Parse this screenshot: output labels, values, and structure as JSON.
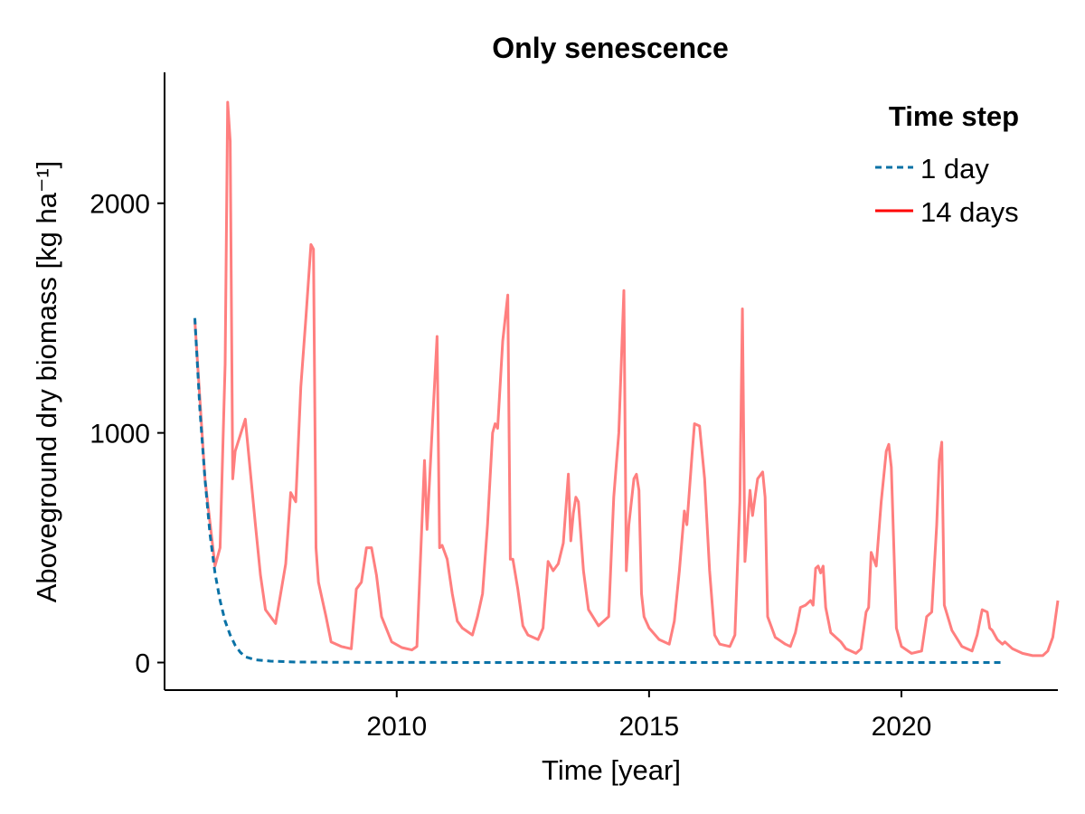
{
  "chart_data": {
    "type": "line",
    "title": "Only senescence",
    "xlabel": "Time [year]",
    "ylabel": "Aboveground dry biomass [kg ha⁻¹]",
    "xlim": [
      2005.4,
      2023.1
    ],
    "ylim": [
      -120,
      2570
    ],
    "xticks": [
      2010,
      2015,
      2020
    ],
    "yticks": [
      0,
      1000,
      2000
    ],
    "grid": false,
    "legend": {
      "title": "Time step",
      "position": "top-right"
    },
    "series": [
      {
        "name": "1 day",
        "color": "#0a72a6",
        "style": "dashed",
        "points": [
          [
            2006.0,
            1500
          ],
          [
            2006.1,
            1100
          ],
          [
            2006.2,
            800
          ],
          [
            2006.3,
            560
          ],
          [
            2006.4,
            390
          ],
          [
            2006.5,
            270
          ],
          [
            2006.6,
            180
          ],
          [
            2006.7,
            120
          ],
          [
            2006.8,
            75
          ],
          [
            2006.9,
            45
          ],
          [
            2007.0,
            25
          ],
          [
            2007.2,
            12
          ],
          [
            2007.5,
            6
          ],
          [
            2008.0,
            2
          ],
          [
            2009.0,
            1
          ],
          [
            2012.0,
            0
          ],
          [
            2016.0,
            0
          ],
          [
            2022.0,
            0
          ]
        ]
      },
      {
        "name": "14 days",
        "color": "#ff0000",
        "opacity": 0.5,
        "style": "solid",
        "points": [
          [
            2006.0,
            1490
          ],
          [
            2006.2,
            800
          ],
          [
            2006.4,
            420
          ],
          [
            2006.5,
            500
          ],
          [
            2006.6,
            1300
          ],
          [
            2006.65,
            2440
          ],
          [
            2006.7,
            2270
          ],
          [
            2006.75,
            800
          ],
          [
            2006.8,
            920
          ],
          [
            2007.0,
            1060
          ],
          [
            2007.2,
            600
          ],
          [
            2007.3,
            380
          ],
          [
            2007.4,
            230
          ],
          [
            2007.6,
            170
          ],
          [
            2007.8,
            430
          ],
          [
            2007.9,
            740
          ],
          [
            2008.0,
            700
          ],
          [
            2008.1,
            1200
          ],
          [
            2008.2,
            1500
          ],
          [
            2008.3,
            1820
          ],
          [
            2008.35,
            1800
          ],
          [
            2008.4,
            500
          ],
          [
            2008.45,
            350
          ],
          [
            2008.6,
            200
          ],
          [
            2008.7,
            90
          ],
          [
            2008.9,
            70
          ],
          [
            2009.1,
            60
          ],
          [
            2009.2,
            320
          ],
          [
            2009.3,
            350
          ],
          [
            2009.4,
            500
          ],
          [
            2009.5,
            500
          ],
          [
            2009.6,
            380
          ],
          [
            2009.7,
            200
          ],
          [
            2009.9,
            90
          ],
          [
            2010.1,
            65
          ],
          [
            2010.3,
            55
          ],
          [
            2010.4,
            70
          ],
          [
            2010.55,
            880
          ],
          [
            2010.6,
            580
          ],
          [
            2010.7,
            1000
          ],
          [
            2010.8,
            1420
          ],
          [
            2010.85,
            500
          ],
          [
            2010.9,
            510
          ],
          [
            2011.0,
            450
          ],
          [
            2011.1,
            300
          ],
          [
            2011.2,
            180
          ],
          [
            2011.3,
            150
          ],
          [
            2011.5,
            120
          ],
          [
            2011.6,
            200
          ],
          [
            2011.7,
            300
          ],
          [
            2011.8,
            600
          ],
          [
            2011.9,
            1000
          ],
          [
            2011.95,
            1040
          ],
          [
            2012.0,
            1020
          ],
          [
            2012.1,
            1400
          ],
          [
            2012.2,
            1600
          ],
          [
            2012.25,
            450
          ],
          [
            2012.3,
            450
          ],
          [
            2012.4,
            320
          ],
          [
            2012.5,
            160
          ],
          [
            2012.6,
            120
          ],
          [
            2012.8,
            100
          ],
          [
            2012.9,
            150
          ],
          [
            2013.0,
            440
          ],
          [
            2013.1,
            400
          ],
          [
            2013.2,
            430
          ],
          [
            2013.3,
            520
          ],
          [
            2013.4,
            820
          ],
          [
            2013.45,
            530
          ],
          [
            2013.5,
            650
          ],
          [
            2013.55,
            720
          ],
          [
            2013.6,
            700
          ],
          [
            2013.7,
            400
          ],
          [
            2013.8,
            230
          ],
          [
            2014.0,
            160
          ],
          [
            2014.2,
            200
          ],
          [
            2014.3,
            720
          ],
          [
            2014.4,
            1000
          ],
          [
            2014.5,
            1620
          ],
          [
            2014.55,
            400
          ],
          [
            2014.6,
            600
          ],
          [
            2014.7,
            800
          ],
          [
            2014.75,
            820
          ],
          [
            2014.8,
            750
          ],
          [
            2014.85,
            300
          ],
          [
            2014.9,
            200
          ],
          [
            2015.0,
            150
          ],
          [
            2015.2,
            100
          ],
          [
            2015.4,
            80
          ],
          [
            2015.5,
            180
          ],
          [
            2015.6,
            400
          ],
          [
            2015.7,
            660
          ],
          [
            2015.75,
            600
          ],
          [
            2015.85,
            900
          ],
          [
            2015.9,
            1040
          ],
          [
            2016.0,
            1030
          ],
          [
            2016.1,
            800
          ],
          [
            2016.2,
            400
          ],
          [
            2016.3,
            120
          ],
          [
            2016.4,
            80
          ],
          [
            2016.6,
            70
          ],
          [
            2016.7,
            120
          ],
          [
            2016.8,
            700
          ],
          [
            2016.85,
            1540
          ],
          [
            2016.9,
            440
          ],
          [
            2017.0,
            750
          ],
          [
            2017.05,
            640
          ],
          [
            2017.15,
            800
          ],
          [
            2017.25,
            830
          ],
          [
            2017.3,
            720
          ],
          [
            2017.35,
            200
          ],
          [
            2017.5,
            110
          ],
          [
            2017.7,
            80
          ],
          [
            2017.8,
            70
          ],
          [
            2017.9,
            130
          ],
          [
            2018.0,
            240
          ],
          [
            2018.1,
            250
          ],
          [
            2018.2,
            270
          ],
          [
            2018.25,
            250
          ],
          [
            2018.3,
            410
          ],
          [
            2018.35,
            420
          ],
          [
            2018.4,
            390
          ],
          [
            2018.45,
            420
          ],
          [
            2018.5,
            240
          ],
          [
            2018.6,
            130
          ],
          [
            2018.8,
            90
          ],
          [
            2018.9,
            60
          ],
          [
            2019.1,
            40
          ],
          [
            2019.2,
            60
          ],
          [
            2019.3,
            220
          ],
          [
            2019.35,
            240
          ],
          [
            2019.4,
            480
          ],
          [
            2019.45,
            450
          ],
          [
            2019.5,
            420
          ],
          [
            2019.6,
            700
          ],
          [
            2019.7,
            920
          ],
          [
            2019.75,
            950
          ],
          [
            2019.8,
            850
          ],
          [
            2019.9,
            150
          ],
          [
            2020.0,
            70
          ],
          [
            2020.2,
            40
          ],
          [
            2020.4,
            50
          ],
          [
            2020.5,
            200
          ],
          [
            2020.6,
            220
          ],
          [
            2020.7,
            600
          ],
          [
            2020.75,
            880
          ],
          [
            2020.8,
            960
          ],
          [
            2020.85,
            250
          ],
          [
            2021.0,
            140
          ],
          [
            2021.2,
            70
          ],
          [
            2021.4,
            50
          ],
          [
            2021.5,
            120
          ],
          [
            2021.6,
            230
          ],
          [
            2021.7,
            220
          ],
          [
            2021.75,
            150
          ],
          [
            2021.8,
            140
          ],
          [
            2021.9,
            100
          ],
          [
            2022.0,
            80
          ],
          [
            2022.05,
            90
          ],
          [
            2022.2,
            60
          ],
          [
            2022.4,
            40
          ],
          [
            2022.6,
            30
          ],
          [
            2022.8,
            30
          ],
          [
            2022.9,
            50
          ],
          [
            2023.0,
            110
          ],
          [
            2023.1,
            270
          ]
        ]
      }
    ]
  }
}
